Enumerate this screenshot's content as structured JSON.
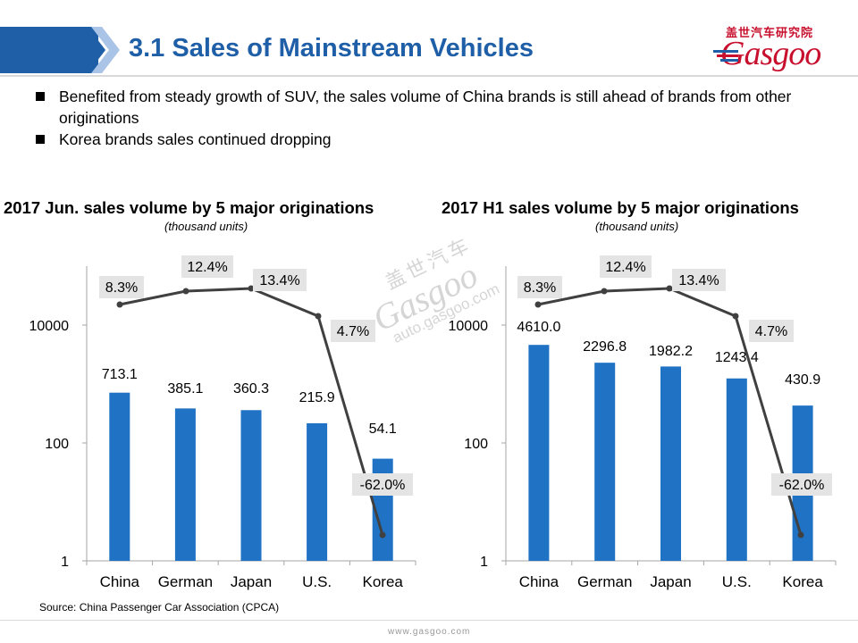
{
  "header": {
    "title": "3.1 Sales of Mainstream Vehicles",
    "logo_cn": "盖世汽车研究院",
    "logo_en": "Gasgoo"
  },
  "bullets": [
    "Benefited from steady growth of SUV, the sales volume of China brands is still ahead of brands from other originations",
    "Korea brands sales continued dropping"
  ],
  "watermark": {
    "cn": "盖世汽车",
    "en": "Gasgoo",
    "url": "auto.gasgoo.com"
  },
  "colors": {
    "accent": "#1f5fa8",
    "bar": "#1f72c4",
    "line": "#404040",
    "label_bg": "#e4e4e4",
    "logo": "#c8102e"
  },
  "chart_data": [
    {
      "type": "bar",
      "title": "2017 Jun. sales volume by 5 major originations",
      "subtitle": "(thousand units)",
      "categories": [
        "China",
        "German",
        "Japan",
        "U.S.",
        "Korea"
      ],
      "values": [
        713.1,
        385.1,
        360.3,
        215.9,
        54.1
      ],
      "value_labels": [
        "713.1",
        "385.1",
        "360.3",
        "215.9",
        "54.1"
      ],
      "y_scale": "log",
      "ylim": [
        1,
        100000
      ],
      "y_ticks": [
        1,
        100,
        10000
      ],
      "y_tick_labels": [
        "1",
        "100",
        "10000"
      ],
      "growth_labels": [
        "8.3%",
        "12.4%",
        "13.4%",
        "4.7%",
        "-62.0%"
      ],
      "growth_values": [
        8.3,
        12.4,
        13.4,
        4.7,
        -62.0
      ]
    },
    {
      "type": "bar",
      "title": "2017 H1 sales volume by 5 major originations",
      "subtitle": "(thousand units)",
      "categories": [
        "China",
        "German",
        "Japan",
        "U.S.",
        "Korea"
      ],
      "values": [
        4610.0,
        2296.8,
        1982.2,
        1243.4,
        430.9
      ],
      "value_labels": [
        "4610.0",
        "2296.8",
        "1982.2",
        "1243.4",
        "430.9"
      ],
      "y_scale": "log",
      "ylim": [
        1,
        100000
      ],
      "y_ticks": [
        1,
        100,
        10000
      ],
      "y_tick_labels": [
        "1",
        "100",
        "10000"
      ],
      "growth_labels": [
        "8.3%",
        "12.4%",
        "13.4%",
        "4.7%",
        "-62.0%"
      ],
      "growth_values": [
        8.3,
        12.4,
        13.4,
        4.7,
        -62.0
      ]
    }
  ],
  "source": "Source: China Passenger Car Association (CPCA)",
  "footer_url": "www.gasgoo.com"
}
